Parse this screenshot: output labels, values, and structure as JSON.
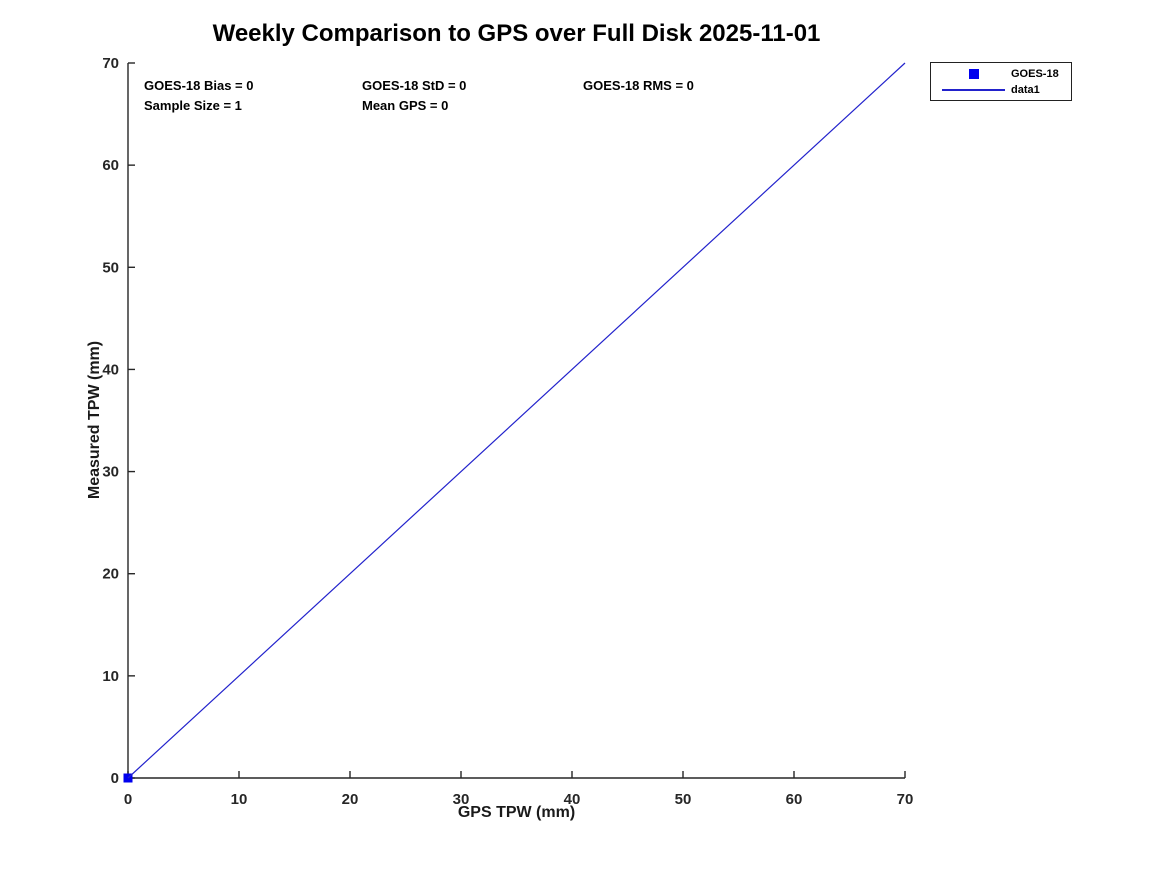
{
  "chart_data": {
    "type": "scatter",
    "title": "Weekly Comparison to GPS over Full Disk 2025-11-01",
    "xlabel": "GPS TPW (mm)",
    "ylabel": "Measured TPW (mm)",
    "xlim": [
      0,
      70
    ],
    "ylim": [
      0,
      70
    ],
    "xticks": [
      0,
      10,
      20,
      30,
      40,
      50,
      60,
      70
    ],
    "yticks": [
      0,
      10,
      20,
      30,
      40,
      50,
      60,
      70
    ],
    "grid": false,
    "axis_color": "#262626",
    "legend_position": "outside-top-right",
    "series": [
      {
        "name": "GOES-18",
        "draw": "marker",
        "marker": "square",
        "color": "#0000ee",
        "points": [
          [
            0,
            0
          ]
        ]
      },
      {
        "name": "data1",
        "draw": "line",
        "color": "#2222cc",
        "points": [
          [
            0,
            0
          ],
          [
            70,
            70
          ]
        ]
      }
    ]
  },
  "annotations": {
    "bias": "GOES-18 Bias = 0",
    "std": "GOES-18 StD = 0",
    "rms": "GOES-18 RMS = 0",
    "sample_size": "Sample Size = 1",
    "mean_gps": "Mean GPS = 0"
  },
  "legend": {
    "entries": [
      {
        "label": "GOES-18",
        "swatch": "square",
        "color": "#0000ee"
      },
      {
        "label": "data1",
        "swatch": "line",
        "color": "#2222cc"
      }
    ]
  }
}
